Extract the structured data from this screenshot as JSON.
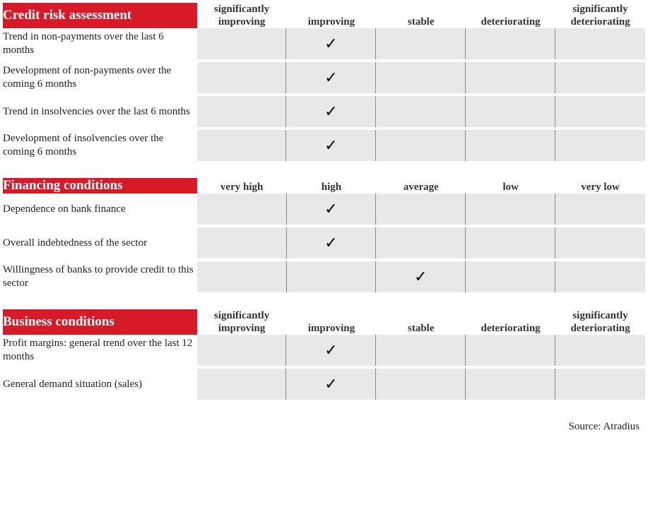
{
  "colors": {
    "header_bg": "#d71a28",
    "header_text": "#ffffff",
    "cell_bg": "#e8e8e8",
    "separator": "#888888",
    "text": "#222222",
    "page_bg": "#ffffff"
  },
  "layout": {
    "label_col_width": 275,
    "value_col_width": 127,
    "num_value_cols": 5
  },
  "checkmark_glyph": "✓",
  "sections": [
    {
      "title": "Credit risk assessment",
      "columns": [
        "significantly improving",
        "improving",
        "stable",
        "deteriorating",
        "significantly deteriorating"
      ],
      "rows": [
        {
          "label": "Trend in non-payments over the last 6 months",
          "checked_index": 1
        },
        {
          "label": "Development of non-payments over the coming 6 months",
          "checked_index": 1
        },
        {
          "label": "Trend in insolvencies over the last 6 months",
          "checked_index": 1
        },
        {
          "label": "Development of insolvencies over the coming 6 months",
          "checked_index": 1
        }
      ]
    },
    {
      "title": "Financing conditions",
      "columns": [
        "very high",
        "high",
        "average",
        "low",
        "very low"
      ],
      "rows": [
        {
          "label": "Dependence on bank finance",
          "checked_index": 1
        },
        {
          "label": "Overall indebtedness of the sector",
          "checked_index": 1
        },
        {
          "label": "Willingness of banks to provide credit to this sector",
          "checked_index": 2
        }
      ]
    },
    {
      "title": "Business conditions",
      "columns": [
        "significantly improving",
        "improving",
        "stable",
        "deteriorating",
        "significantly deteriorating"
      ],
      "rows": [
        {
          "label": "Profit margins: general trend over the last 12 months",
          "checked_index": 1
        },
        {
          "label": "General demand situation (sales)",
          "checked_index": 1
        }
      ]
    }
  ],
  "source_label": "Source: Atradius"
}
